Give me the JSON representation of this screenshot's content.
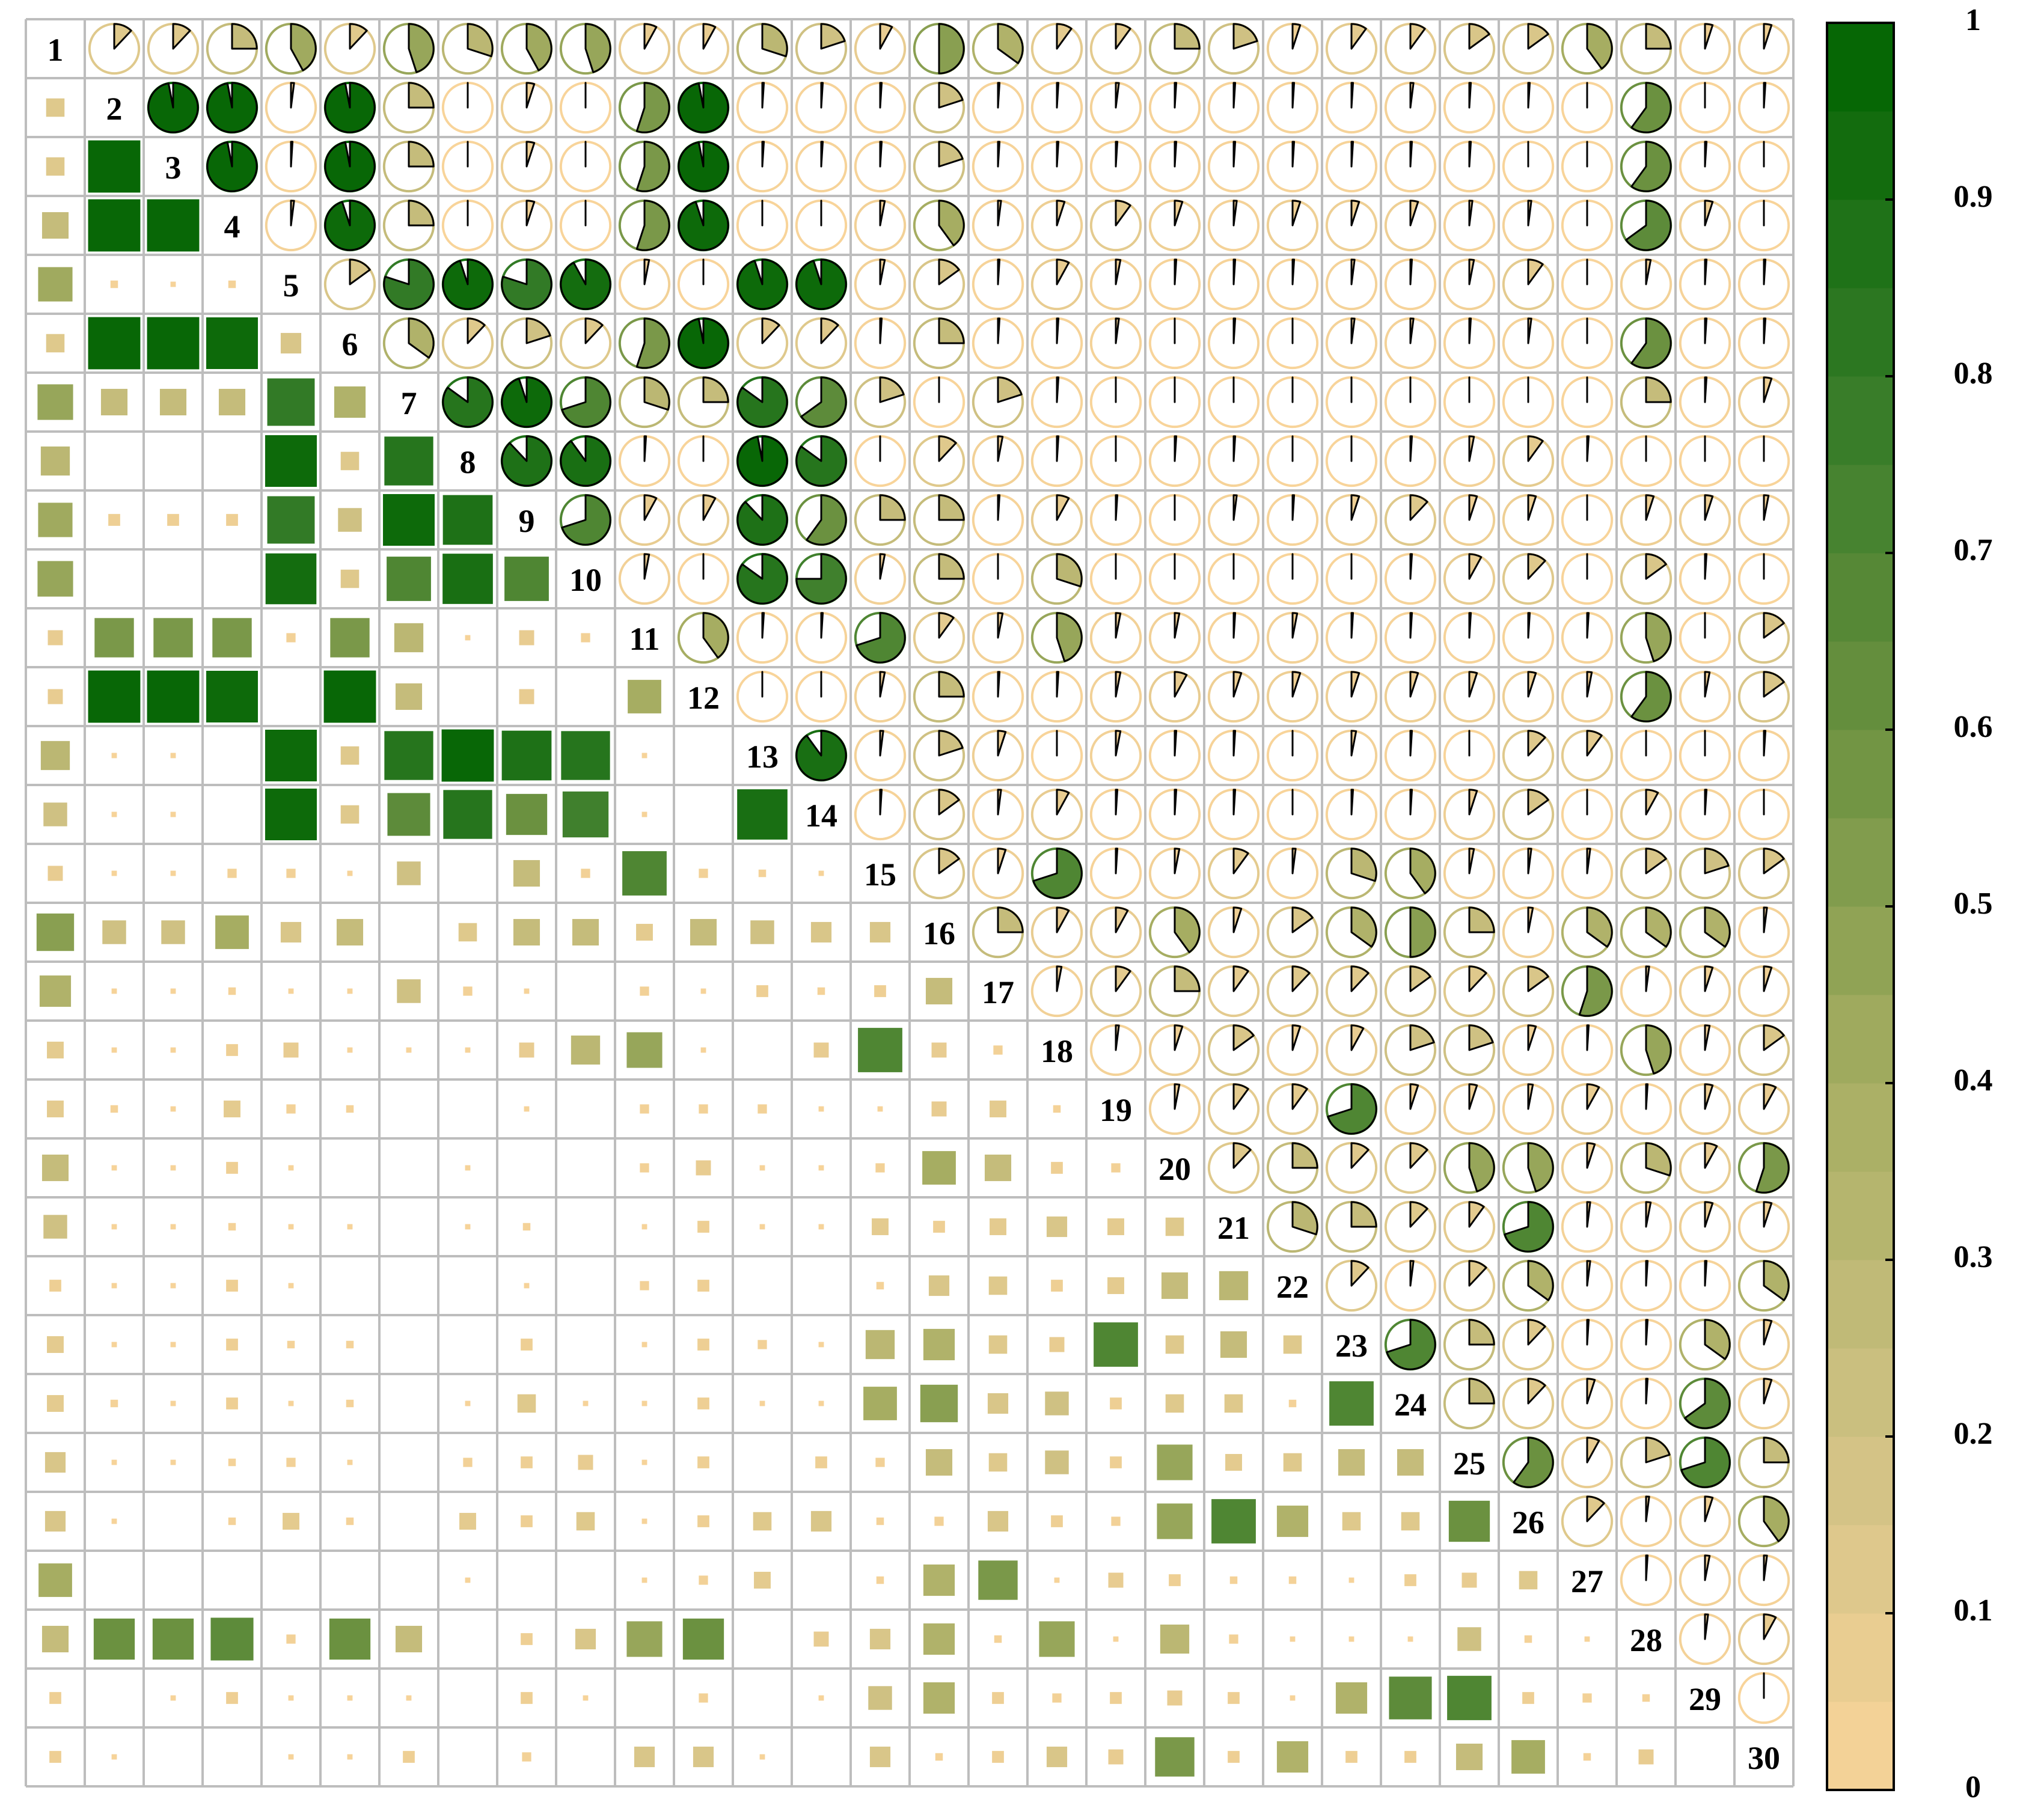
{
  "chart_data": {
    "type": "correlation-matrix",
    "labels": [
      "1",
      "2",
      "3",
      "4",
      "5",
      "6",
      "7",
      "8",
      "9",
      "10",
      "11",
      "12",
      "13",
      "14",
      "15",
      "16",
      "17",
      "18",
      "19",
      "20",
      "21",
      "22",
      "23",
      "24",
      "25",
      "26",
      "27",
      "28",
      "29",
      "30"
    ],
    "correlations": [
      [
        0.12,
        0.12,
        0.25,
        0.42,
        0.12,
        0.45,
        0.3,
        0.42,
        0.45,
        0.08,
        0.08,
        0.3,
        0.2,
        0.08,
        0.5,
        0.35,
        0.1,
        0.1,
        0.25,
        0.2,
        0.05,
        0.1,
        0.1,
        0.15,
        0.15,
        0.4,
        0.25,
        0.05,
        0.05
      ],
      [
        0.97,
        0.97,
        0.02,
        0.97,
        0.25,
        0,
        0.05,
        0,
        0.55,
        0.97,
        0.01,
        0.01,
        0.01,
        0.2,
        0.01,
        0.01,
        0.02,
        0.01,
        0.01,
        0.01,
        0.01,
        0.02,
        0.01,
        0.01,
        0,
        0.6,
        0,
        0.01
      ],
      [
        0.97,
        0.01,
        0.97,
        0.25,
        0,
        0.05,
        0,
        0.55,
        0.97,
        0.01,
        0.01,
        0.01,
        0.2,
        0.01,
        0.01,
        0.01,
        0.01,
        0.01,
        0.01,
        0.01,
        0.01,
        0.01,
        0,
        0,
        0.6,
        0.01,
        0
      ],
      [
        0.02,
        0.95,
        0.25,
        0,
        0.05,
        0,
        0.55,
        0.95,
        0,
        0,
        0.03,
        0.4,
        0.02,
        0.05,
        0.1,
        0.05,
        0.02,
        0.05,
        0.05,
        0.05,
        0.02,
        0.02,
        0,
        0.65,
        0.05,
        0
      ],
      [
        0.15,
        0.8,
        0.95,
        0.8,
        0.92,
        0.03,
        0,
        0.95,
        0.95,
        0.03,
        0.15,
        0.01,
        0.08,
        0.03,
        0.01,
        0.01,
        0.01,
        0.02,
        0.01,
        0.03,
        0.1,
        0,
        0.03,
        0.01,
        0.01
      ],
      [
        0.35,
        0.12,
        0.2,
        0.12,
        0.55,
        0.97,
        0.12,
        0.12,
        0.01,
        0.25,
        0.01,
        0.01,
        0.02,
        0,
        0.01,
        0,
        0.02,
        0.02,
        0.01,
        0.02,
        0,
        0.6,
        0.01,
        0.01
      ],
      [
        0.85,
        0.95,
        0.7,
        0.3,
        0.25,
        0.85,
        0.65,
        0.2,
        0,
        0.2,
        0.01,
        0,
        0,
        0,
        0,
        0,
        0,
        0,
        0,
        0,
        0.25,
        0.01,
        0.05
      ],
      [
        0.88,
        0.9,
        0.01,
        0,
        0.97,
        0.85,
        0,
        0.12,
        0.03,
        0.01,
        0,
        0.01,
        0.01,
        0,
        0,
        0.01,
        0.03,
        0.1,
        0.01,
        0,
        0,
        0
      ],
      [
        0.7,
        0.08,
        0.08,
        0.88,
        0.6,
        0.25,
        0.25,
        0.01,
        0.08,
        0.01,
        0,
        0.02,
        0.01,
        0.05,
        0.12,
        0.05,
        0.05,
        0,
        0.05,
        0.05,
        0.03
      ],
      [
        0.03,
        0,
        0.85,
        0.75,
        0.03,
        0.25,
        0,
        0.3,
        0,
        0,
        0,
        0,
        0,
        0.01,
        0.08,
        0.12,
        0,
        0.15,
        0.01,
        0
      ],
      [
        0.4,
        0.01,
        0.01,
        0.7,
        0.1,
        0.03,
        0.45,
        0.03,
        0.03,
        0.01,
        0.03,
        0.01,
        0.01,
        0.01,
        0.01,
        0.01,
        0.45,
        0,
        0.15
      ],
      [
        0,
        0,
        0.03,
        0.25,
        0.01,
        0.01,
        0.03,
        0.08,
        0.05,
        0.05,
        0.05,
        0.05,
        0.05,
        0.05,
        0.03,
        0.6,
        0.03,
        0.15
      ],
      [
        0.9,
        0.02,
        0.2,
        0.05,
        0,
        0.03,
        0.01,
        0.01,
        0,
        0.03,
        0.01,
        0,
        0.12,
        0.1,
        0,
        0,
        0.01
      ],
      [
        0.01,
        0.15,
        0.02,
        0.08,
        0.01,
        0.01,
        0.01,
        0,
        0.01,
        0.01,
        0.05,
        0.15,
        0,
        0.08,
        0.01,
        0
      ],
      [
        0.15,
        0.05,
        0.7,
        0.01,
        0.03,
        0.1,
        0.02,
        0.3,
        0.4,
        0.03,
        0.02,
        0.02,
        0.15,
        0.2,
        0.15
      ],
      [
        0.25,
        0.08,
        0.08,
        0.4,
        0.05,
        0.15,
        0.35,
        0.5,
        0.25,
        0.03,
        0.35,
        0.35,
        0.35,
        0.02
      ],
      [
        0.03,
        0.1,
        0.25,
        0.1,
        0.12,
        0.12,
        0.15,
        0.12,
        0.15,
        0.55,
        0.02,
        0.05,
        0.05
      ],
      [
        0.02,
        0.05,
        0.15,
        0.05,
        0.08,
        0.2,
        0.2,
        0.05,
        0.01,
        0.45,
        0.03,
        0.15
      ],
      [
        0.03,
        0.1,
        0.1,
        0.7,
        0.05,
        0.05,
        0.03,
        0.08,
        0.01,
        0.05,
        0.08
      ],
      [
        0.12,
        0.25,
        0.12,
        0.12,
        0.45,
        0.45,
        0.05,
        0.3,
        0.08,
        0.55
      ],
      [
        0.3,
        0.25,
        0.12,
        0.1,
        0.7,
        0.02,
        0.03,
        0.05,
        0.05
      ],
      [
        0.12,
        0.02,
        0.12,
        0.35,
        0.02,
        0.01,
        0.01,
        0.35
      ],
      [
        0.7,
        0.25,
        0.12,
        0.01,
        0.01,
        0.35,
        0.05
      ],
      [
        0.25,
        0.12,
        0.05,
        0.01,
        0.65,
        0.05
      ],
      [
        0.6,
        0.08,
        0.2,
        0.7,
        0.25
      ],
      [
        0.12,
        0.02,
        0.05,
        0.4
      ],
      [
        0.01,
        0.03,
        0.02
      ],
      [
        0.02,
        0.08
      ],
      [
        0
      ]
    ],
    "colors": [
      "#F8D49A",
      "#CFC183",
      "#A6AD62",
      "#6B9140",
      "#327A26",
      "#006400"
    ],
    "clim": [
      0,
      1
    ],
    "cticks": [
      0,
      0.1,
      0.2,
      0.3,
      0.4,
      0.5,
      0.6,
      0.7,
      0.8,
      0.9,
      1
    ]
  }
}
